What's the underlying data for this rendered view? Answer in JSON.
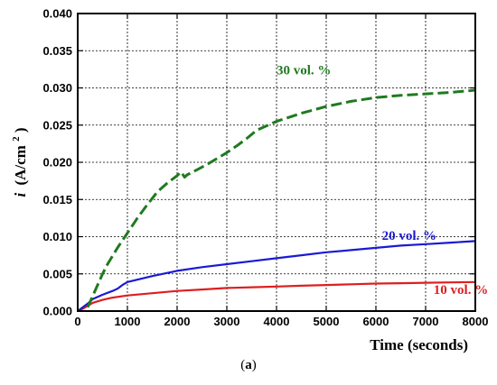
{
  "chart_data": {
    "type": "line",
    "xlabel": "Time (seconds)",
    "ylabel_prefix": "i",
    "ylabel_units": "(A/cm",
    "ylabel_exp": "2",
    "ylabel_close": ")",
    "xlim": [
      0,
      8000
    ],
    "ylim": [
      0,
      0.04
    ],
    "xticks": [
      0,
      1000,
      2000,
      3000,
      4000,
      5000,
      6000,
      7000,
      8000
    ],
    "yticks": [
      "0.000",
      "0.005",
      "0.010",
      "0.015",
      "0.020",
      "0.025",
      "0.030",
      "0.035",
      "0.040"
    ],
    "grid": true,
    "series": [
      {
        "name": "10 vol. %",
        "color": "#dd1f1f",
        "style": "solid",
        "x": [
          0,
          100,
          200,
          300,
          500,
          700,
          1000,
          1500,
          2000,
          2500,
          3000,
          3500,
          4000,
          4500,
          5000,
          5500,
          6000,
          6500,
          7000,
          7500,
          8000
        ],
        "y": [
          0,
          0.0003,
          0.0007,
          0.0011,
          0.0015,
          0.0018,
          0.0021,
          0.0024,
          0.0027,
          0.0029,
          0.0031,
          0.0032,
          0.0033,
          0.0034,
          0.0035,
          0.0036,
          0.0037,
          0.00375,
          0.0038,
          0.00385,
          0.0039
        ]
      },
      {
        "name": "20 vol. %",
        "color": "#1a1ad4",
        "style": "solid",
        "x": [
          0,
          100,
          200,
          300,
          500,
          700,
          800,
          900,
          1000,
          1500,
          2000,
          2500,
          3000,
          3500,
          4000,
          4500,
          5000,
          5500,
          6000,
          6500,
          7000,
          7500,
          8000
        ],
        "y": [
          0,
          0.0005,
          0.001,
          0.0016,
          0.0022,
          0.0027,
          0.003,
          0.0035,
          0.0039,
          0.0047,
          0.0054,
          0.0059,
          0.0063,
          0.0067,
          0.0071,
          0.0075,
          0.0079,
          0.0082,
          0.0085,
          0.0088,
          0.009,
          0.0092,
          0.0094
        ]
      },
      {
        "name": "30 vol. %",
        "color": "#1f7a1f",
        "style": "dashed",
        "x": [
          200,
          300,
          400,
          500,
          600,
          800,
          1000,
          1200,
          1400,
          1600,
          1800,
          2000,
          2080,
          2150,
          2200,
          2400,
          2600,
          2800,
          3000,
          3200,
          3400,
          3600,
          4000,
          4500,
          5000,
          5500,
          6000,
          6500,
          7000,
          7500,
          8000
        ],
        "y": [
          0.0005,
          0.002,
          0.0035,
          0.005,
          0.0063,
          0.0085,
          0.0105,
          0.0125,
          0.0143,
          0.016,
          0.0172,
          0.0182,
          0.0187,
          0.018,
          0.0183,
          0.019,
          0.0197,
          0.0205,
          0.0213,
          0.0222,
          0.0232,
          0.0243,
          0.0255,
          0.0266,
          0.0275,
          0.0282,
          0.0287,
          0.029,
          0.0292,
          0.0294,
          0.0297
        ]
      }
    ],
    "annotations": [
      {
        "series": 2,
        "text": "30 vol. %",
        "x": 4000,
        "y": 0.0318
      },
      {
        "series": 1,
        "text": "20 vol. %",
        "x": 6120,
        "y": 0.0096
      },
      {
        "series": 0,
        "text": "10 vol. %",
        "x": 7160,
        "y": 0.0023
      }
    ]
  },
  "caption": {
    "open": "(",
    "letter": "a",
    "close": ")"
  }
}
